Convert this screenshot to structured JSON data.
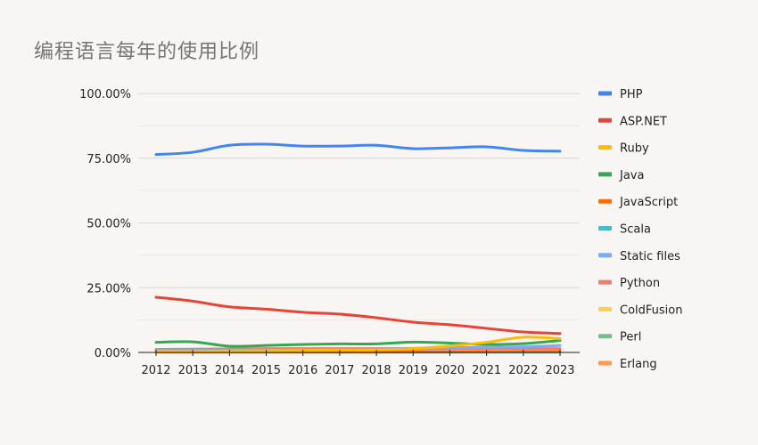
{
  "chart_data": {
    "type": "line",
    "title": "编程语言每年的使用比例",
    "xlabel": "",
    "ylabel": "",
    "x": [
      "2012",
      "2013",
      "2014",
      "2015",
      "2016",
      "2017",
      "2018",
      "2019",
      "2020",
      "2021",
      "2022",
      "2023"
    ],
    "ylim": [
      0,
      100
    ],
    "yticks": [
      "0.00%",
      "25.00%",
      "50.00%",
      "75.00%",
      "100.00%"
    ],
    "grid": true,
    "legend": "right",
    "series": [
      {
        "name": "PHP",
        "color": "#4285f4",
        "values": [
          76.4,
          77.3,
          80.0,
          80.4,
          79.7,
          79.7,
          80.0,
          78.7,
          79.0,
          79.4,
          78.0,
          77.7
        ]
      },
      {
        "name": "ASP.NET",
        "color": "#ea4335",
        "values": [
          21.3,
          19.8,
          17.6,
          16.7,
          15.5,
          14.8,
          13.4,
          11.7,
          10.7,
          9.3,
          7.9,
          7.3
        ]
      },
      {
        "name": "Ruby",
        "color": "#fbbc04",
        "values": [
          0.5,
          0.5,
          0.6,
          0.7,
          0.8,
          0.9,
          1.0,
          1.5,
          2.5,
          3.9,
          5.9,
          5.3
        ]
      },
      {
        "name": "Java",
        "color": "#34a853",
        "values": [
          3.9,
          4.1,
          2.4,
          2.7,
          3.1,
          3.3,
          3.3,
          4.0,
          3.6,
          3.1,
          3.4,
          4.6
        ]
      },
      {
        "name": "JavaScript",
        "color": "#ff6d01",
        "values": [
          0.2,
          0.2,
          0.2,
          0.2,
          0.2,
          0.2,
          0.2,
          0.3,
          0.3,
          0.3,
          0.4,
          0.4
        ]
      },
      {
        "name": "Scala",
        "color": "#46bdc6",
        "values": [
          0.1,
          0.1,
          0.1,
          0.1,
          0.1,
          0.1,
          0.1,
          0.1,
          0.1,
          0.1,
          0.1,
          0.1
        ]
      },
      {
        "name": "Static files",
        "color": "#7baaf7",
        "values": [
          0.8,
          0.8,
          0.9,
          1.0,
          1.1,
          1.2,
          1.3,
          1.6,
          1.8,
          2.0,
          2.2,
          2.7
        ]
      },
      {
        "name": "Python",
        "color": "#f07b72",
        "values": [
          1.2,
          1.3,
          1.4,
          1.5,
          1.5,
          1.5,
          1.5,
          1.5,
          1.5,
          1.5,
          1.5,
          1.5
        ]
      },
      {
        "name": "ColdFusion",
        "color": "#fcd04f",
        "values": [
          0.6,
          0.6,
          0.5,
          0.5,
          0.5,
          0.4,
          0.4,
          0.4,
          0.3,
          0.3,
          0.3,
          0.3
        ]
      },
      {
        "name": "Perl",
        "color": "#71c287",
        "values": [
          1.0,
          0.9,
          0.8,
          0.7,
          0.6,
          0.6,
          0.5,
          0.5,
          0.4,
          0.4,
          0.3,
          0.3
        ]
      },
      {
        "name": "Erlang",
        "color": "#ff994d",
        "values": [
          0.3,
          0.3,
          0.3,
          0.3,
          0.3,
          0.3,
          0.3,
          0.3,
          0.3,
          0.3,
          0.3,
          0.3
        ]
      }
    ]
  }
}
